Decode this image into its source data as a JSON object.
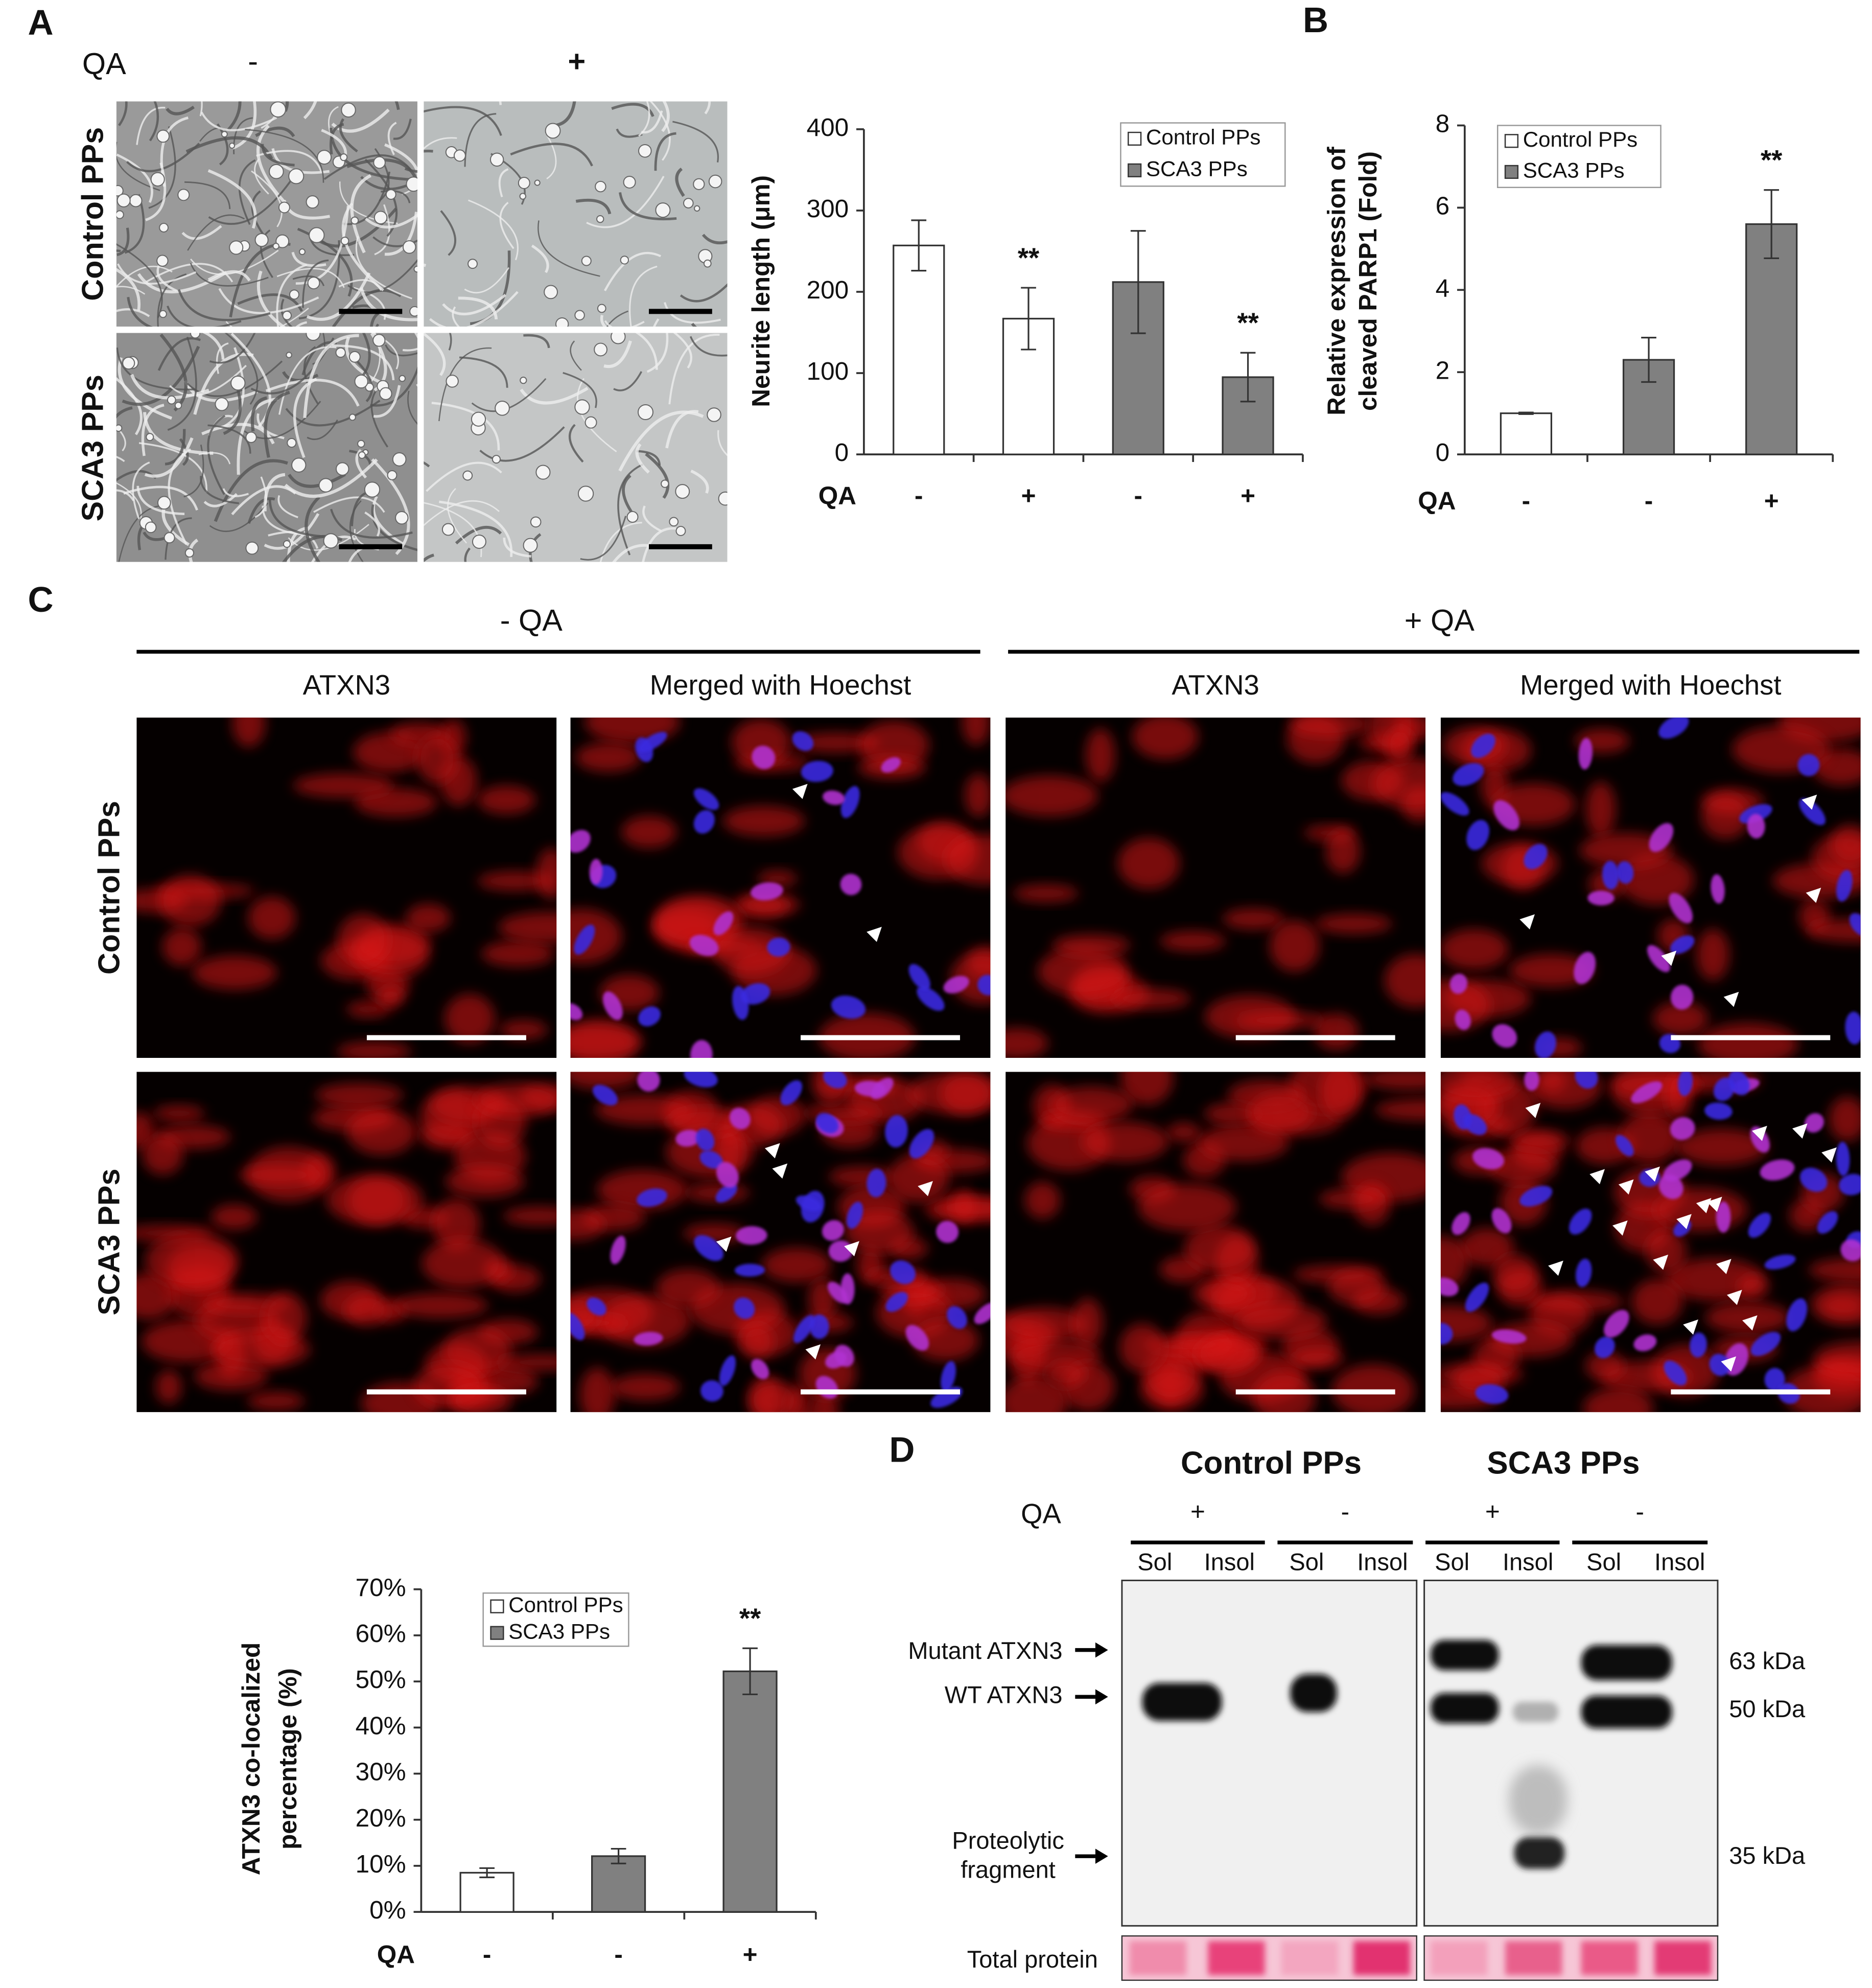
{
  "panel_labels": [
    "A",
    "B",
    "C",
    "D"
  ],
  "micrographs": {
    "treatment_label": "QA",
    "treatments": [
      "-",
      "+"
    ],
    "rows": [
      "Control PPs",
      "SCA3 PPs"
    ]
  },
  "immunostaining": {
    "conditions": [
      "- QA",
      "+ QA"
    ],
    "columns": [
      "ATXN3",
      "Merged with Hoechst",
      "ATXN3",
      "Merged with Hoechst"
    ],
    "rows": [
      "Control PPs",
      "SCA3 PPs"
    ]
  },
  "western_blot": {
    "groups": [
      "Control PPs",
      "SCA3 PPs"
    ],
    "treatment_label": "QA",
    "treatments": [
      "+",
      "-",
      "+",
      "-"
    ],
    "fractions": [
      "Sol",
      "Insol",
      "Sol",
      "Insol",
      "Sol",
      "Insol",
      "Sol",
      "Insol"
    ],
    "bands": [
      [
        "Mutant ATXN3"
      ],
      [
        "WT ATXN3"
      ],
      [
        "Proteolytic",
        "fragment"
      ]
    ],
    "markers": [
      "63 kDa",
      "50 kDa",
      "35 kDa"
    ],
    "loading_control": "Total protein"
  },
  "chart_data": [
    {
      "type": "bar",
      "ylabel": [
        "Neurite length (μm)"
      ],
      "xlabel": "QA",
      "categories": [
        "-",
        "+",
        "-",
        "+"
      ],
      "series": [
        {
          "name": "Control PPs",
          "color": "#ffffff",
          "values": [
            257,
            167,
            null,
            null
          ],
          "errors": [
            31,
            38,
            null,
            null
          ]
        },
        {
          "name": "SCA3 PPs",
          "color": "#808080",
          "values": [
            null,
            null,
            212,
            95
          ],
          "errors": [
            null,
            null,
            63,
            30
          ]
        }
      ],
      "significance": [
        null,
        "**",
        null,
        "**"
      ],
      "ylim": [
        0,
        400
      ],
      "yticks": [
        0,
        100,
        200,
        300,
        400
      ],
      "legend": "upper right"
    },
    {
      "type": "bar",
      "ylabel": [
        "Relative expression of",
        "cleaved PARP1 (Fold)"
      ],
      "xlabel": "QA",
      "categories": [
        "-",
        "-",
        "+"
      ],
      "series": [
        {
          "name": "Control PPs",
          "color": "#ffffff",
          "values": [
            1,
            null,
            null
          ],
          "errors": [
            0.02,
            null,
            null
          ]
        },
        {
          "name": "SCA3 PPs",
          "color": "#808080",
          "values": [
            null,
            2.3,
            5.6
          ],
          "errors": [
            null,
            0.54,
            0.83
          ]
        }
      ],
      "significance": [
        null,
        null,
        "**"
      ],
      "ylim": [
        0,
        8
      ],
      "yticks": [
        0,
        2,
        4,
        6,
        8
      ],
      "legend": "upper left"
    },
    {
      "type": "bar",
      "ylabel": [
        "ATXN3 co-localized",
        "percentage (%)"
      ],
      "xlabel": "QA",
      "categories": [
        "-",
        "-",
        "+"
      ],
      "series": [
        {
          "name": "Control PPs",
          "color": "#ffffff",
          "values": [
            8.5,
            null,
            null
          ],
          "errors": [
            1,
            null,
            null
          ]
        },
        {
          "name": "SCA3 PPs",
          "color": "#808080",
          "values": [
            null,
            12.1,
            52.2
          ],
          "errors": [
            null,
            1.6,
            5
          ]
        }
      ],
      "significance": [
        null,
        null,
        "**"
      ],
      "ylim": [
        0,
        70
      ],
      "yticks": [
        {
          "value": 0,
          "label": "0%"
        },
        {
          "value": 10,
          "label": "10%"
        },
        {
          "value": 20,
          "label": "20%"
        },
        {
          "value": 30,
          "label": "30%"
        },
        {
          "value": 40,
          "label": "40%"
        },
        {
          "value": 50,
          "label": "50%"
        },
        {
          "value": 60,
          "label": "60%"
        },
        {
          "value": 70,
          "label": "70%"
        }
      ],
      "legend": "upper left"
    }
  ]
}
